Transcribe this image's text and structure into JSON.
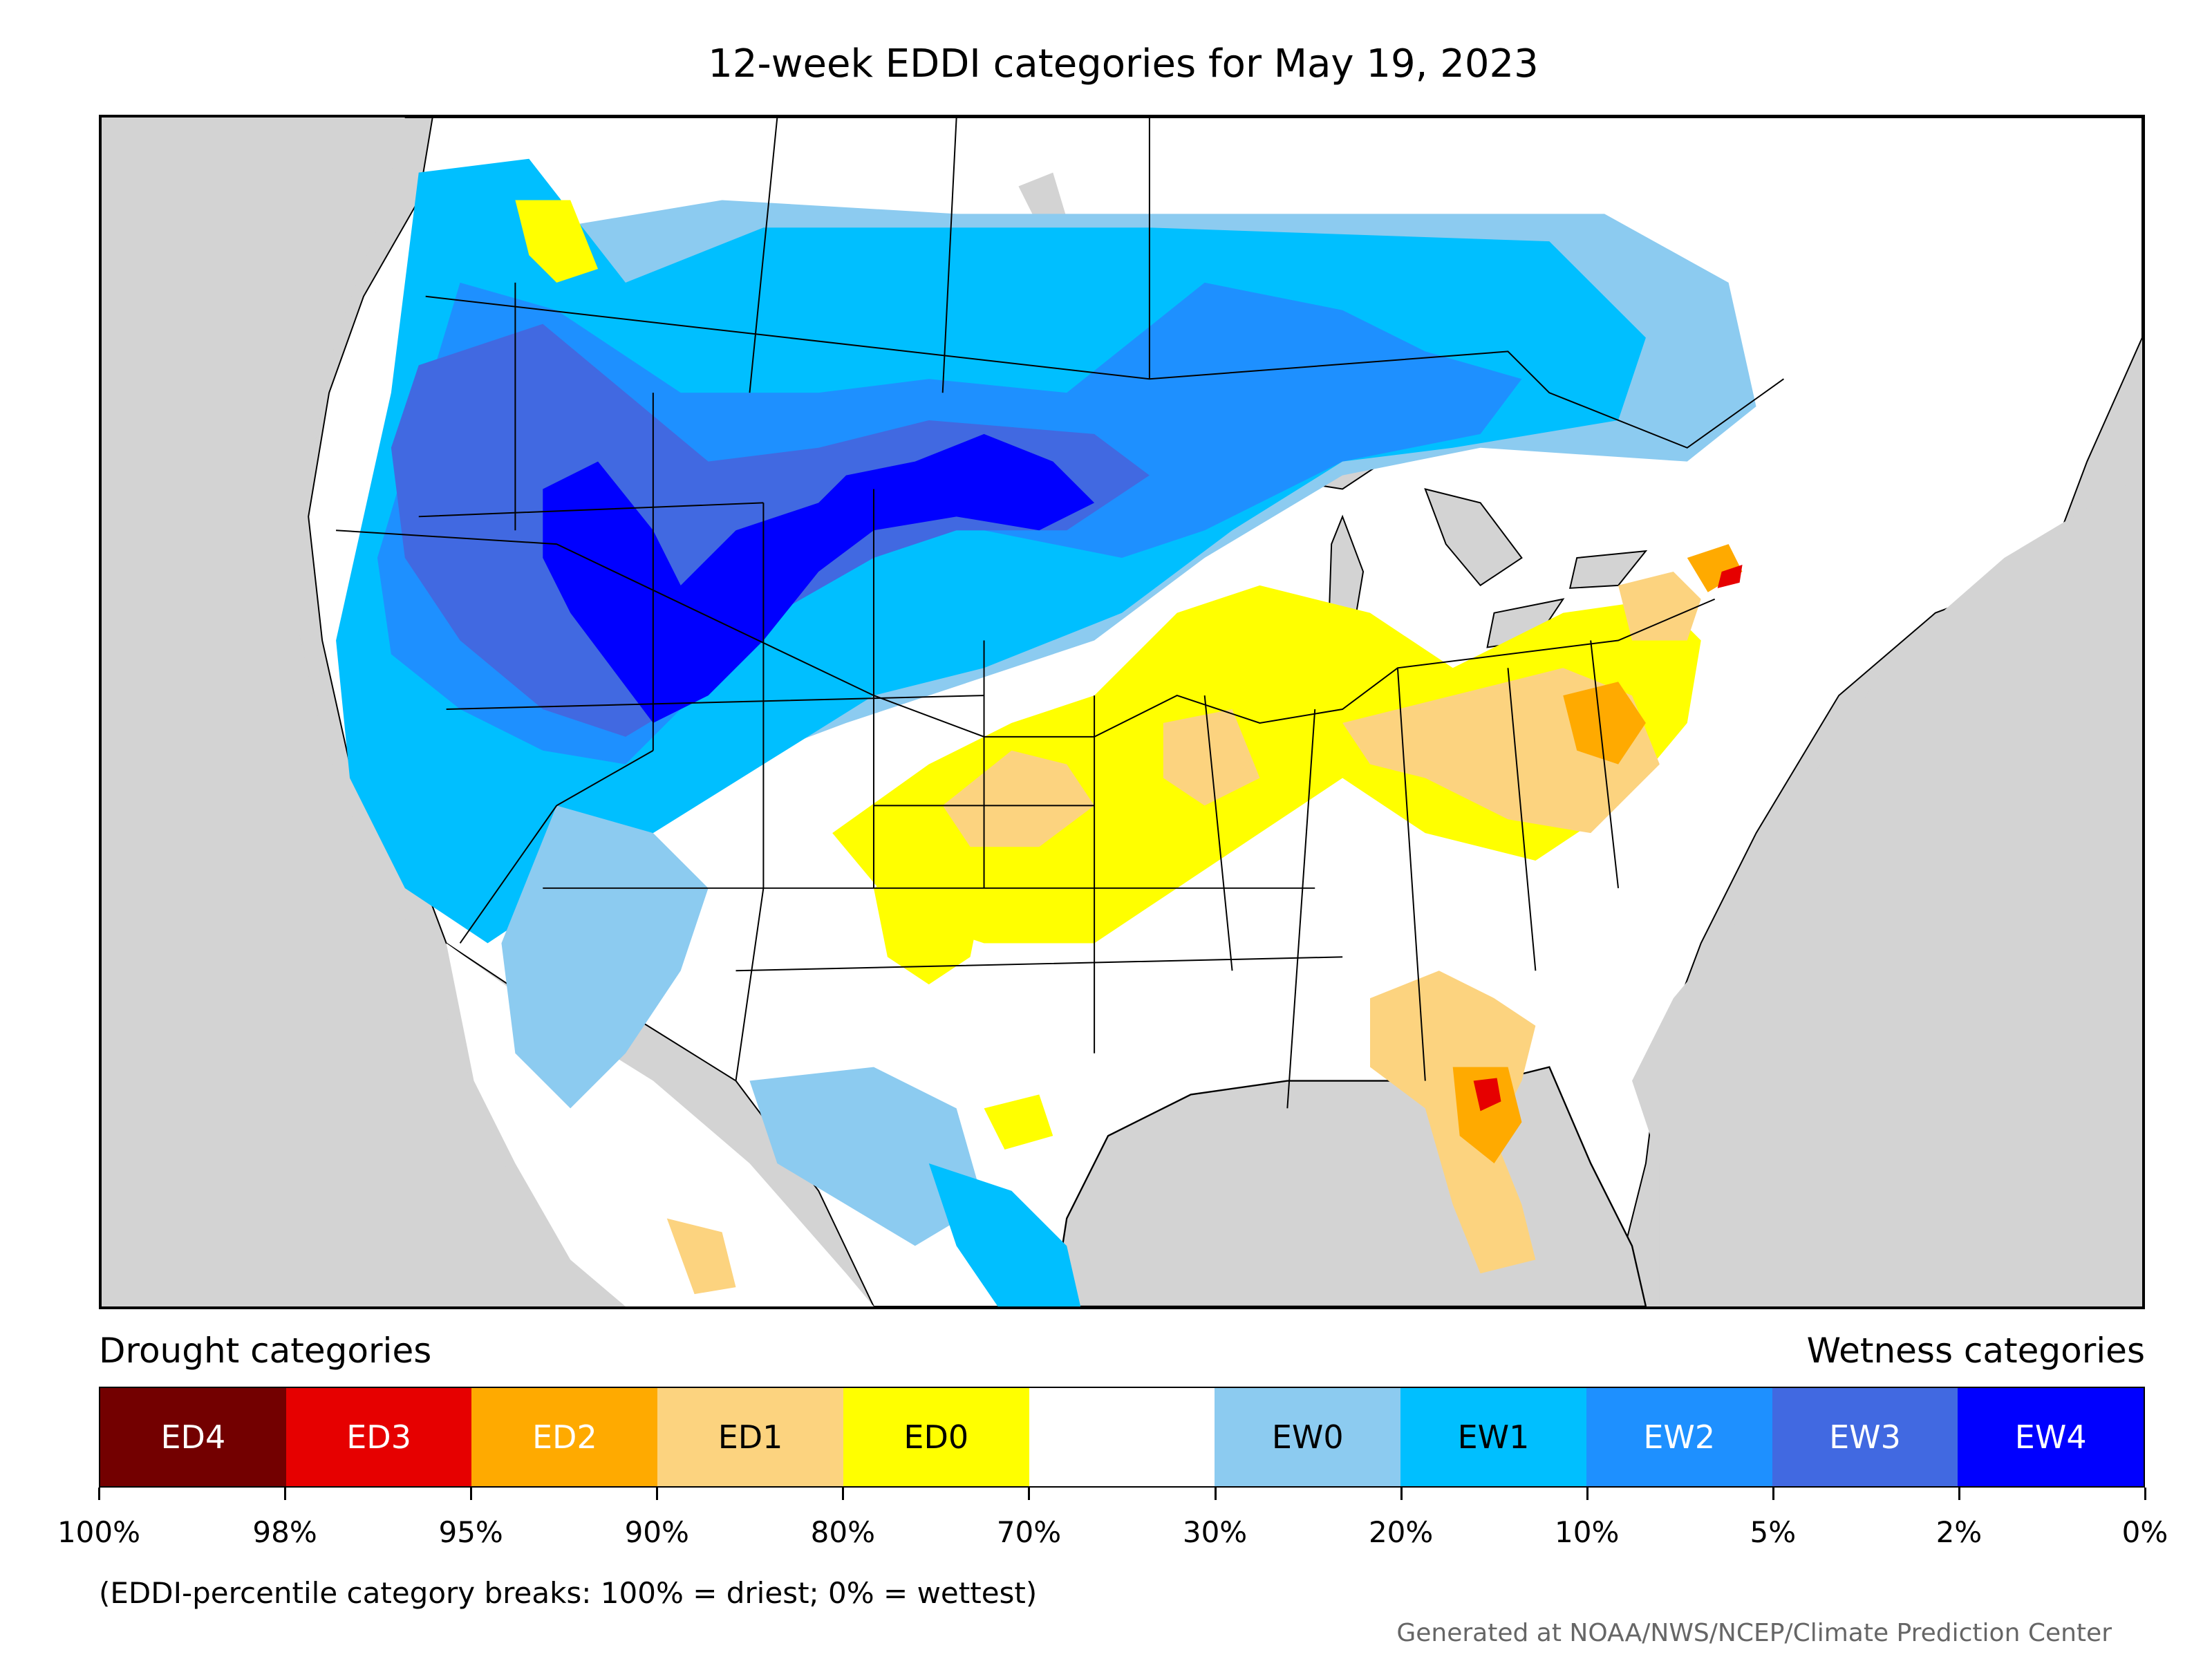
{
  "title": "12-week EDDI categories for May 19, 2023",
  "legend": {
    "drought_heading": "Drought categories",
    "wetness_heading": "Wetness categories",
    "categories": [
      {
        "label": "ED4",
        "color": "#730000",
        "text_color": "#ffffff"
      },
      {
        "label": "ED3",
        "color": "#e60000",
        "text_color": "#ffffff"
      },
      {
        "label": "ED2",
        "color": "#ffaa00",
        "text_color": "#ffffff"
      },
      {
        "label": "ED1",
        "color": "#fcd37f",
        "text_color": "#000000"
      },
      {
        "label": "ED0",
        "color": "#ffff00",
        "text_color": "#000000"
      },
      {
        "label": "",
        "color": "#ffffff",
        "text_color": "#000000"
      },
      {
        "label": "EW0",
        "color": "#8ccbf0",
        "text_color": "#000000"
      },
      {
        "label": "EW1",
        "color": "#00bfff",
        "text_color": "#000000"
      },
      {
        "label": "EW2",
        "color": "#1e90ff",
        "text_color": "#ffffff"
      },
      {
        "label": "EW3",
        "color": "#4169e1",
        "text_color": "#ffffff"
      },
      {
        "label": "EW4",
        "color": "#0000ff",
        "text_color": "#ffffff"
      }
    ],
    "ticks": [
      "100%",
      "98%",
      "95%",
      "90%",
      "80%",
      "70%",
      "30%",
      "20%",
      "10%",
      "5%",
      "2%",
      "0%"
    ]
  },
  "note": "(EDDI-percentile category breaks: 100% = driest; 0% = wettest)",
  "credit": "Generated at NOAA/NWS/NCEP/Climate Prediction Center",
  "map": {
    "background_color": "#d3d3d3",
    "land_color": "#ffffff"
  }
}
